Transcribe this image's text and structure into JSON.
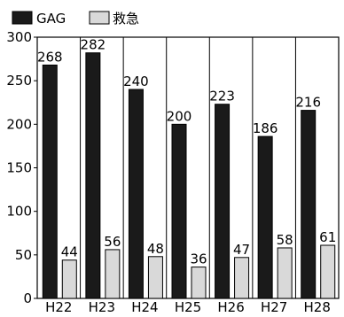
{
  "chart_data": {
    "type": "bar",
    "categories": [
      "H22",
      "H23",
      "H24",
      "H25",
      "H26",
      "H27",
      "H28"
    ],
    "series": [
      {
        "name": "GAG",
        "color": "#1a1a1a",
        "values": [
          268,
          282,
          240,
          200,
          223,
          186,
          216
        ]
      },
      {
        "name": "救急",
        "color": "#d9d9d9",
        "values": [
          44,
          56,
          48,
          36,
          47,
          58,
          61
        ]
      }
    ],
    "ylim": [
      0,
      300
    ],
    "yticks": [
      0,
      50,
      100,
      150,
      200,
      250,
      300
    ],
    "grid": "vertical separators between categories",
    "legend_position": "top-left",
    "data_labels": true
  }
}
